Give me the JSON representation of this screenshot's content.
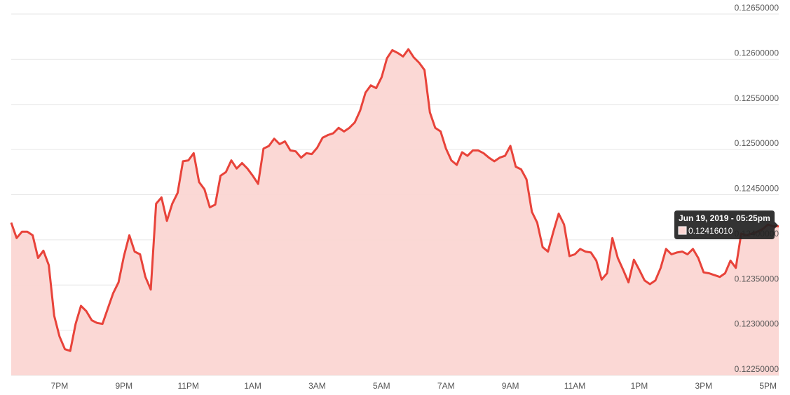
{
  "chart_data": {
    "type": "area",
    "color": "#e8433a",
    "fill": "#fbd6d3",
    "grid": true,
    "categories": [
      null,
      null,
      null,
      null,
      null,
      null,
      null,
      null,
      null,
      "7PM",
      null,
      null,
      null,
      null,
      null,
      null,
      null,
      null,
      null,
      null,
      null,
      "9PM",
      null,
      null,
      null,
      null,
      null,
      null,
      null,
      null,
      null,
      null,
      null,
      "11PM",
      null,
      null,
      null,
      null,
      null,
      null,
      null,
      null,
      null,
      null,
      null,
      "1AM",
      null,
      null,
      null,
      null,
      null,
      null,
      null,
      null,
      null,
      null,
      null,
      "3AM",
      null,
      null,
      null,
      null,
      null,
      null,
      null,
      null,
      null,
      null,
      null,
      "5AM",
      null,
      null,
      null,
      null,
      null,
      null,
      null,
      null,
      null,
      null,
      null,
      "7AM",
      null,
      null,
      null,
      null,
      null,
      null,
      null,
      null,
      null,
      null,
      null,
      "9AM",
      null,
      null,
      null,
      null,
      null,
      null,
      null,
      null,
      null,
      null,
      null,
      "11AM",
      null,
      null,
      null,
      null,
      null,
      null,
      null,
      null,
      null,
      null,
      null,
      "1PM",
      null,
      null,
      null,
      null,
      null,
      null,
      null,
      null,
      null,
      null,
      null,
      "3PM",
      null,
      null,
      null,
      null,
      null,
      null,
      null,
      null,
      null,
      null,
      null,
      "5PM",
      null,
      null
    ],
    "values": [
      0.12419,
      0.12402,
      0.12409,
      0.12409,
      0.12405,
      0.1238,
      0.12388,
      0.12372,
      0.12316,
      0.12293,
      0.12279,
      0.12277,
      0.12307,
      0.12327,
      0.12321,
      0.12311,
      0.12308,
      0.12307,
      0.12324,
      0.12341,
      0.12353,
      0.12382,
      0.12405,
      0.12387,
      0.12384,
      0.12359,
      0.12345,
      0.1244,
      0.12447,
      0.12421,
      0.1244,
      0.12452,
      0.12487,
      0.12488,
      0.12496,
      0.12464,
      0.12456,
      0.12436,
      0.12439,
      0.12471,
      0.12475,
      0.12488,
      0.12479,
      0.12485,
      0.12479,
      0.12471,
      0.12462,
      0.12501,
      0.12504,
      0.12512,
      0.12506,
      0.12509,
      0.12499,
      0.12498,
      0.12491,
      0.12496,
      0.12495,
      0.12502,
      0.12513,
      0.12516,
      0.12518,
      0.12524,
      0.1252,
      0.12524,
      0.1253,
      0.12543,
      0.12563,
      0.12571,
      0.12568,
      0.1258,
      0.12601,
      0.1261,
      0.12607,
      0.12603,
      0.12611,
      0.12602,
      0.12596,
      0.12588,
      0.12541,
      0.12524,
      0.1252,
      0.12501,
      0.12488,
      0.12483,
      0.12497,
      0.12493,
      0.12499,
      0.12499,
      0.12496,
      0.12491,
      0.12487,
      0.12491,
      0.12493,
      0.12504,
      0.12481,
      0.12478,
      0.12467,
      0.12431,
      0.12419,
      0.12392,
      0.12387,
      0.12409,
      0.12429,
      0.12417,
      0.12382,
      0.12384,
      0.1239,
      0.12387,
      0.12386,
      0.12377,
      0.12356,
      0.12363,
      0.12402,
      0.1238,
      0.12367,
      0.12353,
      0.12378,
      0.12367,
      0.12355,
      0.12351,
      0.12355,
      0.12369,
      0.1239,
      0.12384,
      0.12386,
      0.12387,
      0.12384,
      0.1239,
      0.1238,
      0.12364,
      0.12363,
      0.12361,
      0.12359,
      0.12363,
      0.12377,
      0.12369,
      0.12407,
      0.12405,
      0.12407,
      0.12409,
      0.12412,
      0.12417,
      0.12415,
      0.12415
    ],
    "ylim": [
      0.1225,
      0.1265
    ],
    "yticks": [
      {
        "value": 0.1225,
        "label": "0.12250000"
      },
      {
        "value": 0.123,
        "label": "0.12300000"
      },
      {
        "value": 0.1235,
        "label": "0.12350000"
      },
      {
        "value": 0.124,
        "label": "0.12400000"
      },
      {
        "value": 0.1245,
        "label": "0.12450000"
      },
      {
        "value": 0.125,
        "label": "0.12500000"
      },
      {
        "value": 0.1255,
        "label": "0.12550000"
      },
      {
        "value": 0.126,
        "label": "0.12600000"
      },
      {
        "value": 0.1265,
        "label": "0.12650000"
      }
    ],
    "tooltip": {
      "title": "Jun 19, 2019 - 05:25pm",
      "value": "0.12416010"
    }
  }
}
